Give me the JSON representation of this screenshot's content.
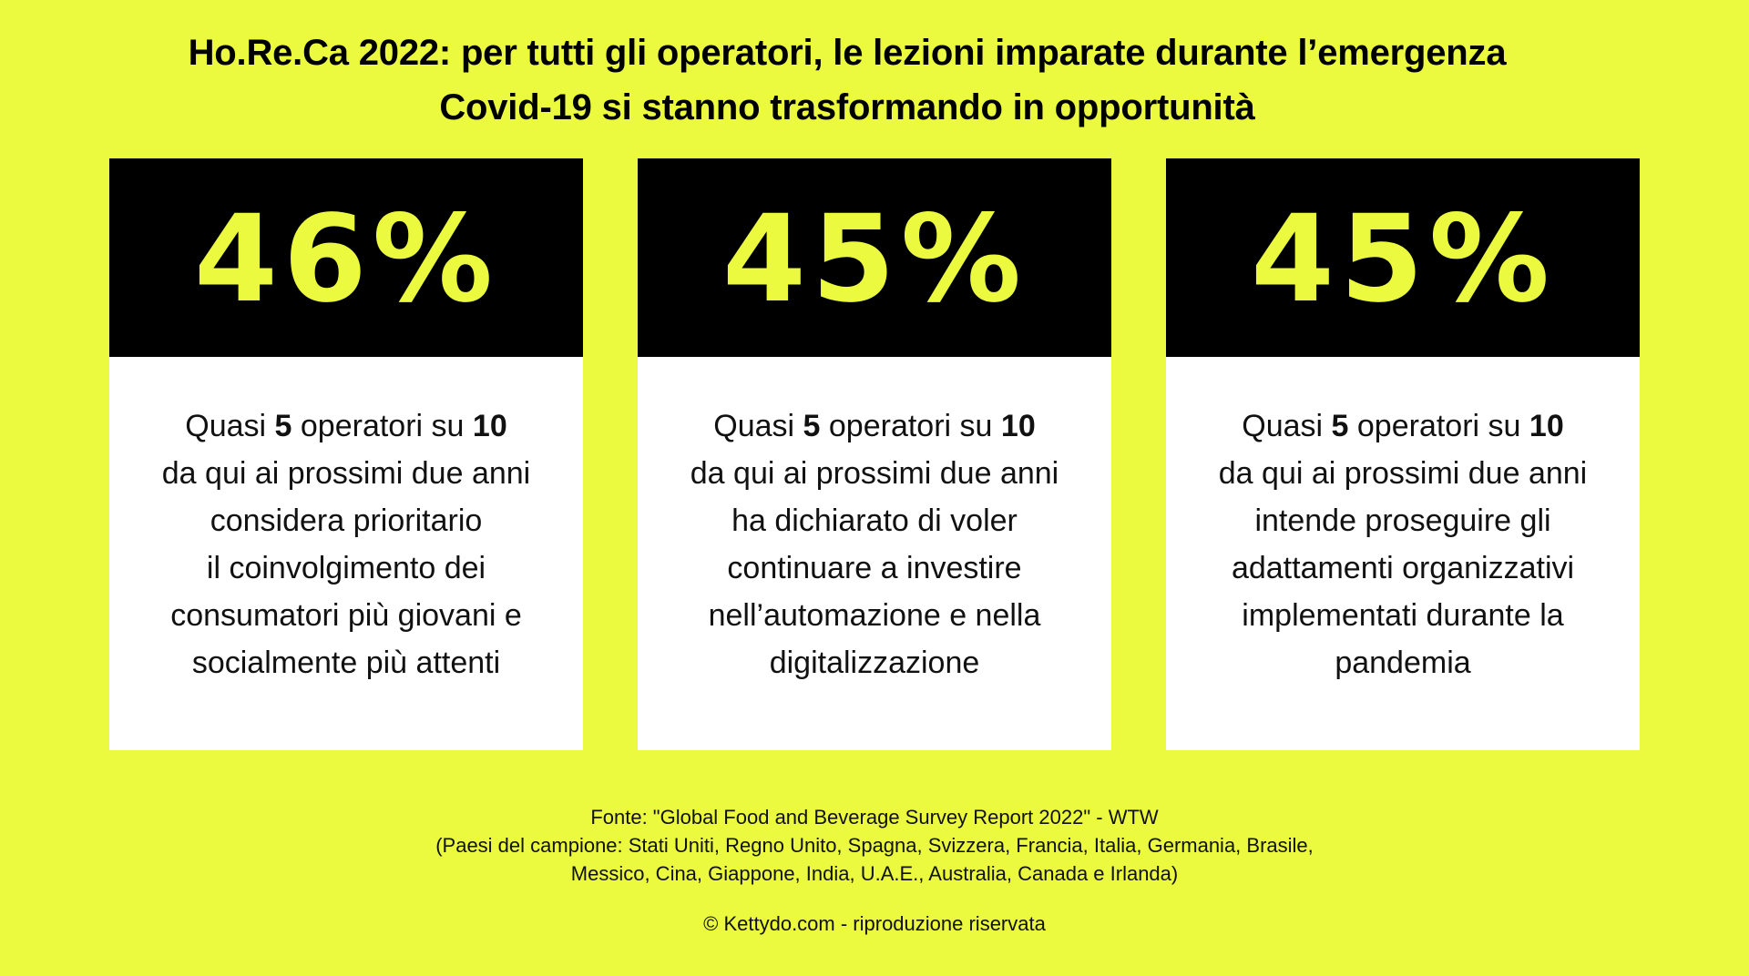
{
  "title": {
    "line1": "Ho.Re.Ca 2022: per tutti gli operatori, le lezioni imparate durante l’emergenza",
    "line2": "Covid-19 si stanno trasformando in opportunità"
  },
  "colors": {
    "background": "#ebf93f",
    "header": "#000000",
    "percent": "#ebf93f",
    "card": "#ffffff"
  },
  "cards": [
    {
      "percent": "46%",
      "lead": {
        "pre": "Quasi ",
        "n1": "5",
        "mid": " operatori su ",
        "n2": "10"
      },
      "lines": [
        "da qui ai prossimi due anni",
        "considera prioritario",
        "il coinvolgimento dei",
        "consumatori più giovani e",
        "socialmente più attenti"
      ]
    },
    {
      "percent": "45%",
      "lead": {
        "pre": "Quasi ",
        "n1": "5",
        "mid": " operatori su ",
        "n2": "10"
      },
      "lines": [
        "da qui ai prossimi due anni",
        "ha dichiarato di voler",
        "continuare a investire",
        "nell’automazione e nella",
        "digitalizzazione"
      ]
    },
    {
      "percent": "45%",
      "lead": {
        "pre": "Quasi ",
        "n1": "5",
        "mid": " operatori su ",
        "n2": "10"
      },
      "lines": [
        "da qui ai prossimi due anni",
        "intende proseguire gli",
        "adattamenti organizzativi",
        "implementati durante la",
        "pandemia"
      ]
    }
  ],
  "source": {
    "line1": "Fonte: \"Global Food and Beverage Survey Report 2022\" - WTW",
    "line2": "(Paesi del campione: Stati Uniti, Regno Unito, Spagna, Svizzera, Francia, Italia, Germania, Brasile,",
    "line3": "Messico, Cina, Giappone, India, U.A.E., Australia, Canada e Irlanda)"
  },
  "copyright": "© Kettydo.com - riproduzione riservata"
}
